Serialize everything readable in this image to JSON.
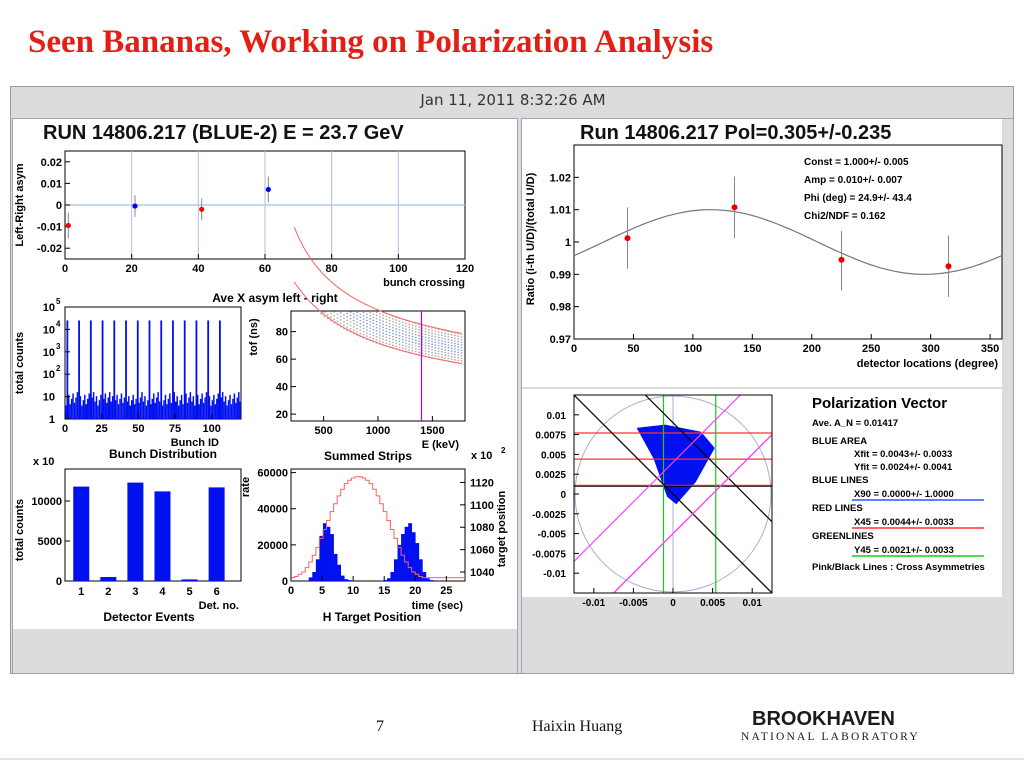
{
  "slide": {
    "title": "Seen Bananas, Working on Polarization Analysis",
    "timestamp": "Jan 11, 2011 8:32:26 AM",
    "page_number": "7",
    "author": "Haixin Huang",
    "logo_top": "BROOKHAVEN",
    "logo_bottom": "NATIONAL LABORATORY"
  },
  "panels": {
    "left_header": "RUN 14806.217 (BLUE-2) E = 23.7 GeV",
    "right_header": "Run 14806.217    Pol=0.305+/-0.235"
  },
  "chart_data": [
    {
      "id": "asym",
      "type": "scatter",
      "title": "Ave X asym left - right",
      "xlabel": "bunch crossing",
      "ylabel": "Left-Right asym",
      "xlim": [
        0,
        120
      ],
      "ylim": [
        -0.025,
        0.025
      ],
      "xticks": [
        "0",
        "20",
        "40",
        "60",
        "80",
        "100",
        "120"
      ],
      "yticks": [
        "0.02",
        "0.01",
        "0",
        "-0.01",
        "-0.02"
      ],
      "grid": true,
      "points": [
        {
          "x": 1,
          "y": -0.0095,
          "err": 0.006,
          "color": "#ff0000"
        },
        {
          "x": 21,
          "y": -0.0005,
          "err": 0.005,
          "color": "#0000ff"
        },
        {
          "x": 41,
          "y": -0.002,
          "err": 0.005,
          "color": "#ff0000"
        },
        {
          "x": 61,
          "y": 0.0072,
          "err": 0.006,
          "color": "#0000ff"
        }
      ]
    },
    {
      "id": "bunch",
      "type": "bar",
      "title": "Bunch Distribution",
      "xlabel": "Bunch ID",
      "ylabel": "total counts",
      "scale": "log",
      "xlim": [
        0,
        120
      ],
      "xticks": [
        "0",
        "25",
        "50",
        "75",
        "100"
      ],
      "yticks": [
        "10",
        "10",
        "10",
        "10",
        "10",
        "1"
      ],
      "ytick_exponents": [
        "5",
        "4",
        "3",
        "2",
        "",
        ""
      ],
      "peaks_x": [
        1,
        9,
        17,
        25,
        33,
        41,
        49,
        57,
        65,
        73,
        81,
        89,
        97,
        105
      ],
      "peak_height_decades": 4.4,
      "noise_height_decades": 1.2
    },
    {
      "id": "strips",
      "type": "scatter",
      "title": "Summed Strips",
      "xlabel": "E (keV)",
      "ylabel": "tof (ns)",
      "xlim": [
        200,
        1800
      ],
      "ylim": [
        15,
        95
      ],
      "xticks": [
        "500",
        "1000",
        "1500"
      ],
      "yticks": [
        "80",
        "60",
        "40",
        "20"
      ],
      "cut_line_x": 1400
    },
    {
      "id": "detector",
      "type": "bar",
      "title": "Detector Events",
      "xlabel": "Det. no.",
      "ylabel": "total counts",
      "multiplier": "x 10",
      "ylim": [
        0,
        14000
      ],
      "yticks": [
        "10000",
        "5000",
        "0"
      ],
      "categories": [
        "1",
        "2",
        "3",
        "4",
        "5",
        "6"
      ],
      "values": [
        11800,
        500,
        12300,
        11200,
        200,
        11700
      ]
    },
    {
      "id": "target",
      "type": "bar",
      "title": "H Target Position",
      "xlabel": "time (sec)",
      "ylabel": "rate",
      "y2label": "target position",
      "y2_multiplier": "x 10",
      "y2_exponent": "2",
      "xlim": [
        0,
        28
      ],
      "ylim": [
        0,
        62000
      ],
      "y2lim": [
        1032,
        1132
      ],
      "xticks": [
        "0",
        "5",
        "10",
        "15",
        "20",
        "25"
      ],
      "yticks": [
        "60000",
        "40000",
        "20000",
        "0"
      ],
      "y2ticks": [
        "1120",
        "1100",
        "1080",
        "1060",
        "1040"
      ],
      "rate_values": [
        0,
        0,
        0,
        0,
        0,
        2000,
        5000,
        12000,
        25000,
        32000,
        30000,
        26000,
        15000,
        9000,
        3000,
        1000,
        500,
        200,
        0,
        0,
        0,
        0,
        0,
        0,
        0,
        200,
        500,
        1500,
        5000,
        12000,
        20000,
        26000,
        30000,
        32000,
        27000,
        21000,
        12000,
        5000,
        1500,
        500,
        0,
        0,
        0,
        0,
        0,
        0,
        0,
        0,
        0
      ],
      "position_values": [
        1035,
        1036,
        1038,
        1040,
        1044,
        1049,
        1055,
        1062,
        1070,
        1078,
        1086,
        1094,
        1101,
        1108,
        1114,
        1119,
        1122,
        1124,
        1125,
        1125,
        1124,
        1122,
        1119,
        1114,
        1108,
        1101,
        1094,
        1086,
        1078,
        1070,
        1062,
        1055,
        1049,
        1044,
        1040,
        1038,
        1036,
        1035,
        1035,
        1035,
        1035,
        1035,
        1035,
        1035,
        1035,
        1035,
        1035,
        1035,
        1035
      ]
    },
    {
      "id": "ratio",
      "type": "scatter",
      "xlabel": "detector locations (degree)",
      "ylabel": "Ratio (i-th U/D)/(total U/D)",
      "xlim": [
        0,
        360
      ],
      "ylim": [
        0.97,
        1.03
      ],
      "xticks": [
        "0",
        "50",
        "100",
        "150",
        "200",
        "250",
        "300",
        "350"
      ],
      "yticks": [
        "1.02",
        "1.01",
        "1",
        "0.99",
        "0.98",
        "0.97"
      ],
      "points": [
        {
          "x": 45,
          "y": 1.0012,
          "err": 0.0095
        },
        {
          "x": 135,
          "y": 1.0107,
          "err": 0.0095
        },
        {
          "x": 225,
          "y": 0.9945,
          "err": 0.0095
        },
        {
          "x": 315,
          "y": 0.9925,
          "err": 0.0095
        }
      ],
      "fit": {
        "const": 1.0,
        "amp": 0.01,
        "phi_deg": 24.9
      },
      "stats": [
        "Const =   1.000+/-  0.005",
        "Amp =  0.010+/-  0.007",
        "Phi (deg) =  24.9+/- 43.4",
        "Chi2/NDF =  0.162"
      ]
    },
    {
      "id": "polvec",
      "type": "scatter",
      "title": "Polarization Vector",
      "xlim": [
        -0.0125,
        0.0125
      ],
      "ylim": [
        -0.0125,
        0.0125
      ],
      "xticks": [
        "-0.01",
        "-0.005",
        "0",
        "0.005",
        "0.01"
      ],
      "yticks": [
        "0.01",
        "0.0075",
        "0.005",
        "0.0025",
        "0",
        "-0.0025",
        "-0.005",
        "-0.0075",
        "-0.01"
      ],
      "blue_area": [
        [
          -0.0045,
          0.0083
        ],
        [
          -0.001,
          0.0087
        ],
        [
          0.0035,
          0.0078
        ],
        [
          0.0052,
          0.0058
        ],
        [
          0.0028,
          0.0015
        ],
        [
          0.0004,
          -0.0012
        ],
        [
          -0.0007,
          -0.0003
        ],
        [
          -0.0024,
          0.0045
        ]
      ],
      "red_lines_y": [
        0.0077,
        0.0044,
        0.0011
      ],
      "green_lines_x": [
        -0.0012,
        0.0054
      ],
      "legend": {
        "ave": "Ave. A_N = 0.01417",
        "blue_area": "BLUE AREA",
        "xfit": "Xfit =  0.0043+/- 0.0033",
        "yfit": "Yfit =  0.0024+/- 0.0041",
        "blue_lines": "BLUE LINES",
        "x90": "X90 =  0.0000+/- 1.0000",
        "red_lines": "RED LINES",
        "x45": "X45 =  0.0044+/- 0.0033",
        "green_lines": "GREENLINES",
        "y45": "Y45 =  0.0021+/- 0.0033",
        "pink_black": "Pink/Black Lines : Cross Asymmetries"
      }
    }
  ]
}
